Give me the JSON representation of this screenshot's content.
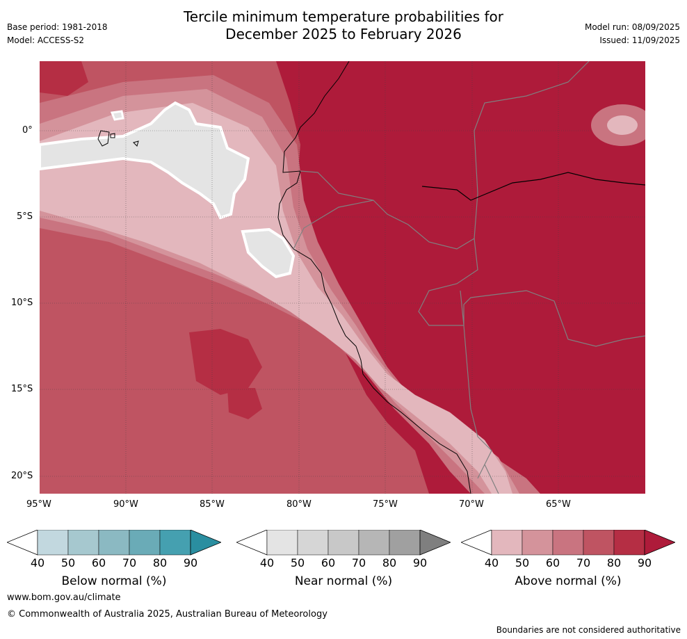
{
  "header": {
    "title_line1": "Tercile minimum temperature probabilities for",
    "title_line2": "December 2025 to February 2026",
    "base_period": "Base period: 1981-2018",
    "model": "Model: ACCESS-S2",
    "model_run": "Model run: 08/09/2025",
    "issued": "Issued: 11/09/2025"
  },
  "map": {
    "lat_labels": [
      "0°",
      "5°S",
      "10°S",
      "15°S",
      "20°S"
    ],
    "lon_labels": [
      "95°W",
      "90°W",
      "85°W",
      "80°W",
      "75°W",
      "70°W",
      "65°W"
    ]
  },
  "colorbars": [
    {
      "id": "below",
      "label": "Below normal (%)",
      "ticks": [
        "40",
        "50",
        "60",
        "70",
        "80",
        "90"
      ],
      "colors": [
        "#ffffff",
        "#c2d8df",
        "#a6c8cf",
        "#8bb9c2",
        "#6aabb7",
        "#45a0b0",
        "#2a8ea0"
      ]
    },
    {
      "id": "near",
      "label": "Near normal (%)",
      "ticks": [
        "40",
        "50",
        "60",
        "70",
        "80",
        "90"
      ],
      "colors": [
        "#ffffff",
        "#e4e4e4",
        "#d6d6d6",
        "#c8c8c8",
        "#b6b6b6",
        "#a0a0a0",
        "#7f7f7f"
      ]
    },
    {
      "id": "above",
      "label": "Above normal (%)",
      "ticks": [
        "40",
        "50",
        "60",
        "70",
        "80",
        "90"
      ],
      "colors": [
        "#ffffff",
        "#e3b7bd",
        "#d4939b",
        "#c97480",
        "#bf5462",
        "#b52e44",
        "#ae1b3a"
      ]
    }
  ],
  "footer": {
    "website": "www.bom.gov.au/climate",
    "copyright": "© Commonwealth of Australia 2025, Australian Bureau of Meteorology",
    "disclaimer": "Boundaries are not considered authoritative"
  }
}
